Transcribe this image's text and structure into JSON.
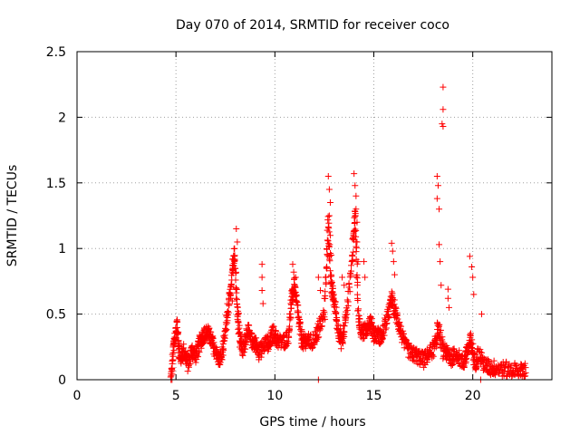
{
  "chart_data": {
    "type": "scatter",
    "title": "Day 070 of 2014, SRMTID for receiver coco",
    "xlabel": "GPS time / hours",
    "ylabel": "SRMTID / TECUs",
    "xlim": [
      0,
      24
    ],
    "ylim": [
      0,
      2.5
    ],
    "x_ticks": [
      0,
      5,
      10,
      15,
      20
    ],
    "x_tick_labels": [
      "0",
      "5",
      "10",
      "15",
      "20"
    ],
    "y_ticks": [
      0,
      0.5,
      1,
      1.5,
      2,
      2.5
    ],
    "y_tick_labels": [
      "0",
      "0.5",
      "1",
      "1.5",
      "2",
      "2.5"
    ],
    "grid": true,
    "marker": "+",
    "series_color": "#ff0000",
    "envelope": [
      [
        4.75,
        0.0
      ],
      [
        4.9,
        0.27
      ],
      [
        5.05,
        0.42
      ],
      [
        5.2,
        0.15
      ],
      [
        5.4,
        0.22
      ],
      [
        5.6,
        0.12
      ],
      [
        5.8,
        0.22
      ],
      [
        6.0,
        0.18
      ],
      [
        6.2,
        0.28
      ],
      [
        6.4,
        0.34
      ],
      [
        6.6,
        0.36
      ],
      [
        6.8,
        0.3
      ],
      [
        7.0,
        0.22
      ],
      [
        7.2,
        0.14
      ],
      [
        7.4,
        0.24
      ],
      [
        7.6,
        0.5
      ],
      [
        7.8,
        0.7
      ],
      [
        7.95,
        1.0
      ],
      [
        8.1,
        0.55
      ],
      [
        8.25,
        0.3
      ],
      [
        8.4,
        0.22
      ],
      [
        8.6,
        0.38
      ],
      [
        8.8,
        0.3
      ],
      [
        9.0,
        0.28
      ],
      [
        9.2,
        0.2
      ],
      [
        9.5,
        0.3
      ],
      [
        9.7,
        0.25
      ],
      [
        9.9,
        0.36
      ],
      [
        10.1,
        0.3
      ],
      [
        10.4,
        0.28
      ],
      [
        10.7,
        0.34
      ],
      [
        10.85,
        0.62
      ],
      [
        11.0,
        0.72
      ],
      [
        11.2,
        0.45
      ],
      [
        11.4,
        0.28
      ],
      [
        11.6,
        0.3
      ],
      [
        11.9,
        0.28
      ],
      [
        12.2,
        0.38
      ],
      [
        12.5,
        0.5
      ],
      [
        12.7,
        1.2
      ],
      [
        12.85,
        0.7
      ],
      [
        13.0,
        0.6
      ],
      [
        13.2,
        0.38
      ],
      [
        13.4,
        0.28
      ],
      [
        13.6,
        0.5
      ],
      [
        13.9,
        0.9
      ],
      [
        14.05,
        1.3
      ],
      [
        14.2,
        0.5
      ],
      [
        14.4,
        0.35
      ],
      [
        14.6,
        0.38
      ],
      [
        14.8,
        0.45
      ],
      [
        15.0,
        0.35
      ],
      [
        15.2,
        0.34
      ],
      [
        15.4,
        0.32
      ],
      [
        15.7,
        0.48
      ],
      [
        15.9,
        0.62
      ],
      [
        16.1,
        0.5
      ],
      [
        16.3,
        0.4
      ],
      [
        16.6,
        0.25
      ],
      [
        16.9,
        0.2
      ],
      [
        17.2,
        0.18
      ],
      [
        17.5,
        0.15
      ],
      [
        17.8,
        0.2
      ],
      [
        18.1,
        0.25
      ],
      [
        18.25,
        0.4
      ],
      [
        18.5,
        0.22
      ],
      [
        18.7,
        0.2
      ],
      [
        18.9,
        0.16
      ],
      [
        19.2,
        0.2
      ],
      [
        19.5,
        0.12
      ],
      [
        19.7,
        0.2
      ],
      [
        19.9,
        0.3
      ],
      [
        20.1,
        0.12
      ],
      [
        20.3,
        0.2
      ],
      [
        20.6,
        0.11
      ],
      [
        20.9,
        0.09
      ],
      [
        21.2,
        0.09
      ],
      [
        21.6,
        0.08
      ],
      [
        22.0,
        0.07
      ],
      [
        22.4,
        0.06
      ],
      [
        22.7,
        0.08
      ]
    ],
    "spikes": [
      [
        7.85,
        0.6
      ],
      [
        7.95,
        0.9
      ],
      [
        8.05,
        1.15
      ],
      [
        8.1,
        1.05
      ],
      [
        9.35,
        0.88
      ],
      [
        9.35,
        0.78
      ],
      [
        9.35,
        0.68
      ],
      [
        9.4,
        0.58
      ],
      [
        10.9,
        0.88
      ],
      [
        10.95,
        0.82
      ],
      [
        11.05,
        0.78
      ],
      [
        12.2,
        0.78
      ],
      [
        12.3,
        0.68
      ],
      [
        12.2,
        0.0
      ],
      [
        12.7,
        1.55
      ],
      [
        12.75,
        1.45
      ],
      [
        12.8,
        1.35
      ],
      [
        12.75,
        1.25
      ],
      [
        12.8,
        1.1
      ],
      [
        12.85,
        0.95
      ],
      [
        13.4,
        0.78
      ],
      [
        13.5,
        0.72
      ],
      [
        14.0,
        1.57
      ],
      [
        14.05,
        1.48
      ],
      [
        14.1,
        1.4
      ],
      [
        14.1,
        1.3
      ],
      [
        14.15,
        1.2
      ],
      [
        14.15,
        1.05
      ],
      [
        14.2,
        0.9
      ],
      [
        14.5,
        0.9
      ],
      [
        14.55,
        0.78
      ],
      [
        15.9,
        1.04
      ],
      [
        15.95,
        0.98
      ],
      [
        16.0,
        0.9
      ],
      [
        16.05,
        0.8
      ],
      [
        18.2,
        1.55
      ],
      [
        18.25,
        1.48
      ],
      [
        18.2,
        1.38
      ],
      [
        18.3,
        1.3
      ],
      [
        18.3,
        1.03
      ],
      [
        18.35,
        0.9
      ],
      [
        18.4,
        0.72
      ],
      [
        18.45,
        1.95
      ],
      [
        18.5,
        1.93
      ],
      [
        18.5,
        2.06
      ],
      [
        18.5,
        2.23
      ],
      [
        18.75,
        0.69
      ],
      [
        18.75,
        0.62
      ],
      [
        18.8,
        0.55
      ],
      [
        19.85,
        0.94
      ],
      [
        19.95,
        0.86
      ],
      [
        20.0,
        0.78
      ],
      [
        20.05,
        0.65
      ],
      [
        20.45,
        0.5
      ],
      [
        20.4,
        0.0
      ],
      [
        4.75,
        0.0
      ],
      [
        4.8,
        0.0
      ]
    ]
  }
}
